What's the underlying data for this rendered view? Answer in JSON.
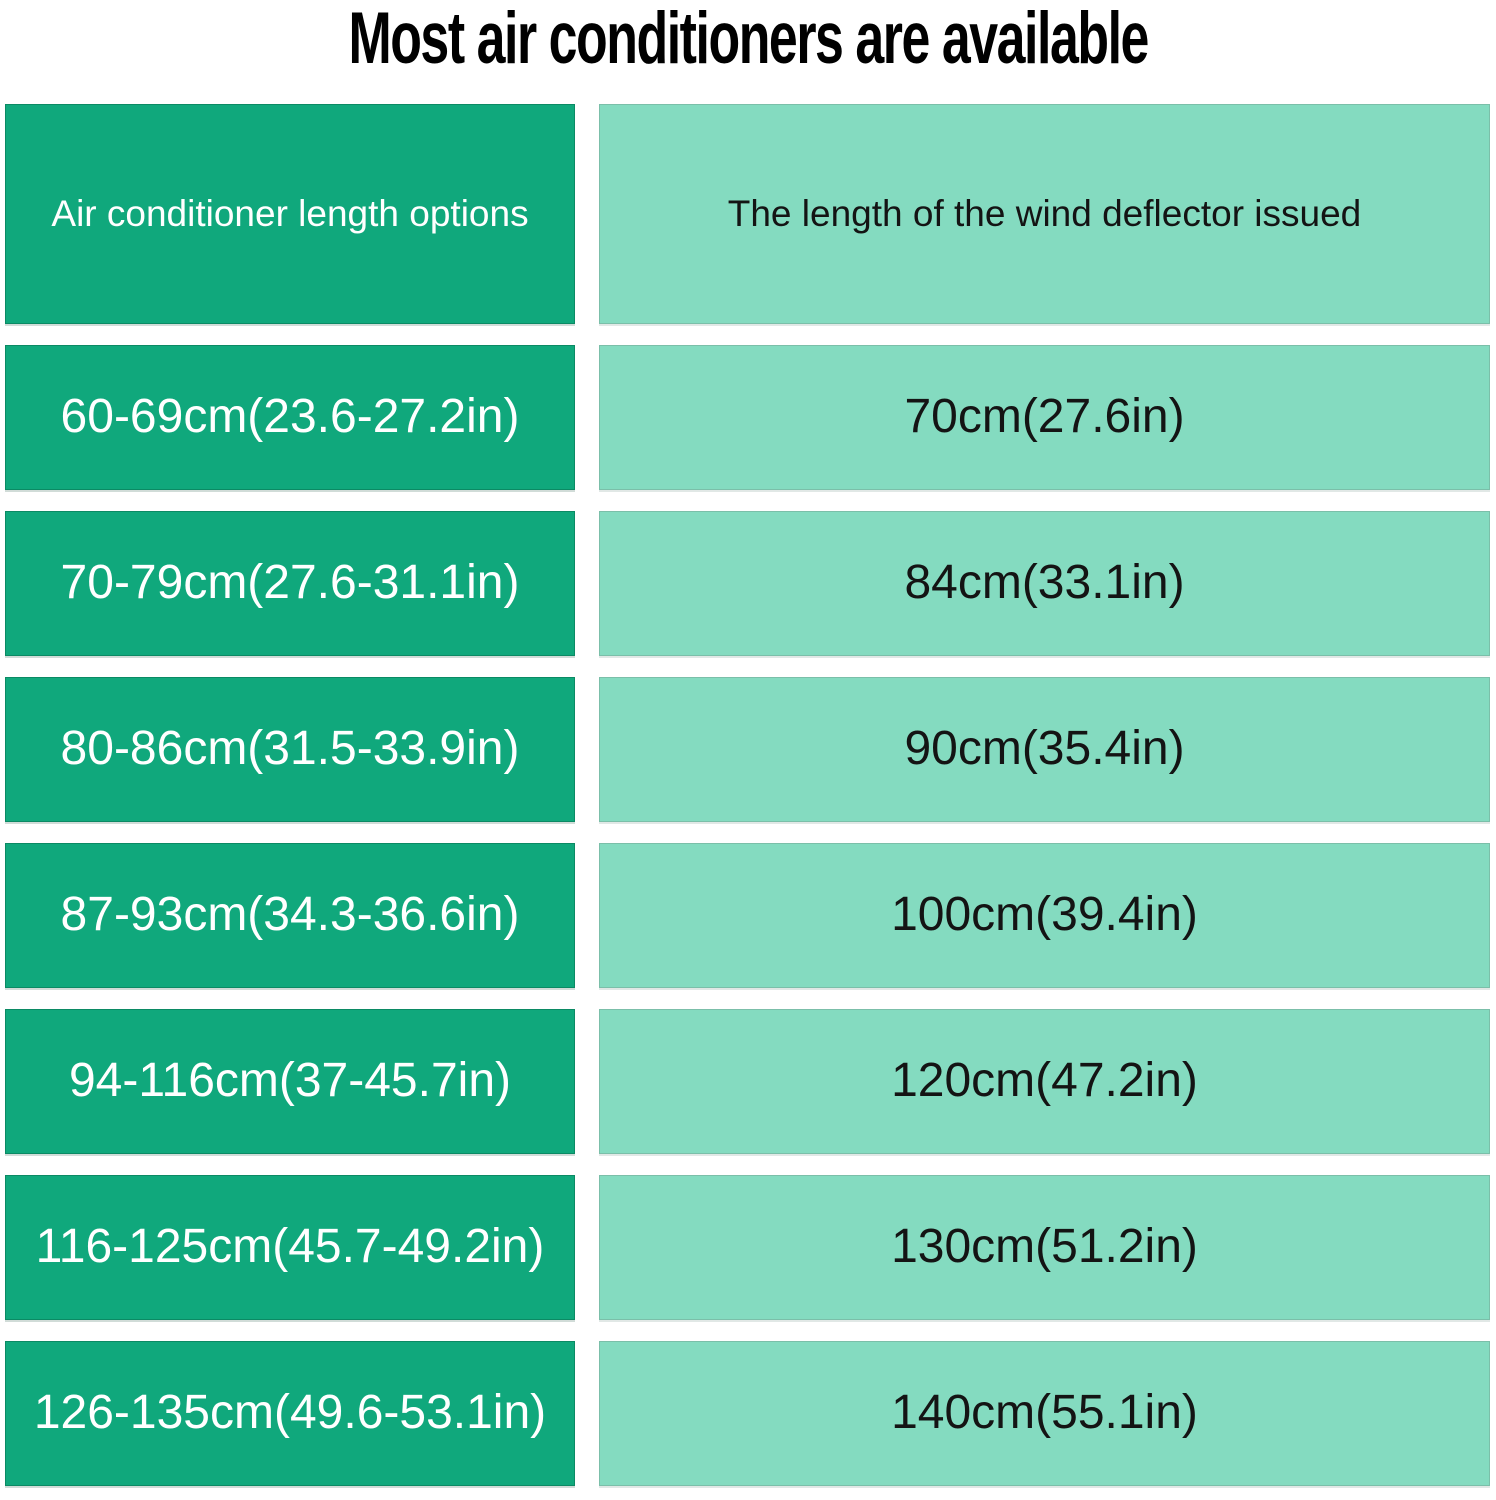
{
  "chart_data": {
    "type": "table",
    "title": "Most air conditioners are available",
    "columns": [
      "Air conditioner length options",
      "The length of the wind deflector issued"
    ],
    "rows": [
      [
        "60-69cm(23.6-27.2in)",
        "70cm(27.6in)"
      ],
      [
        "70-79cm(27.6-31.1in)",
        "84cm(33.1in)"
      ],
      [
        "80-86cm(31.5-33.9in)",
        "90cm(35.4in)"
      ],
      [
        "87-93cm(34.3-36.6in)",
        "100cm(39.4in)"
      ],
      [
        "94-116cm(37-45.7in)",
        "120cm(47.2in)"
      ],
      [
        "116-125cm(45.7-49.2in)",
        "130cm(51.2in)"
      ],
      [
        "126-135cm(49.6-53.1in)",
        "140cm(55.1in)"
      ]
    ],
    "legend_position": "none",
    "grid": false
  },
  "colors": {
    "background": "#ffffff",
    "title_text": "#000000",
    "left_column_bg": "#10a87c",
    "left_column_text": "#ffffff",
    "right_column_bg": "#84dbc0",
    "right_column_text": "#141414"
  }
}
